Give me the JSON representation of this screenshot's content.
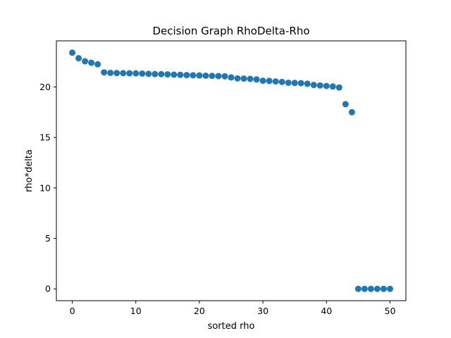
{
  "chart_data": {
    "type": "scatter",
    "title": "Decision Graph RhoDelta-Rho",
    "xlabel": "sorted rho",
    "ylabel": "rho*delta",
    "xlim": [
      -2.5,
      52.5
    ],
    "ylim": [
      -1.17,
      24.57
    ],
    "xticks": [
      0,
      10,
      20,
      30,
      40,
      50
    ],
    "yticks": [
      0,
      5,
      10,
      15,
      20
    ],
    "grid": false,
    "marker_color": "#1f77b4",
    "series": [
      {
        "x": [
          0,
          1,
          2,
          3,
          4,
          5,
          6,
          7,
          8,
          9,
          10,
          11,
          12,
          13,
          14,
          15,
          16,
          17,
          18,
          19,
          20,
          21,
          22,
          23,
          24,
          25,
          26,
          27,
          28,
          29,
          30,
          31,
          32,
          33,
          34,
          35,
          36,
          37,
          38,
          39,
          40,
          41,
          42,
          43,
          44,
          45,
          46,
          47,
          48,
          49,
          50
        ],
        "y": [
          23.4,
          22.85,
          22.55,
          22.4,
          22.25,
          21.45,
          21.4,
          21.38,
          21.37,
          21.36,
          21.35,
          21.33,
          21.3,
          21.28,
          21.27,
          21.25,
          21.22,
          21.2,
          21.18,
          21.16,
          21.14,
          21.12,
          21.1,
          21.08,
          21.06,
          20.95,
          20.85,
          20.83,
          20.8,
          20.75,
          20.62,
          20.6,
          20.55,
          20.5,
          20.42,
          20.4,
          20.38,
          20.32,
          20.2,
          20.15,
          20.1,
          20.05,
          19.95,
          18.3,
          17.5,
          0,
          0,
          0,
          0,
          0,
          0
        ]
      }
    ]
  }
}
